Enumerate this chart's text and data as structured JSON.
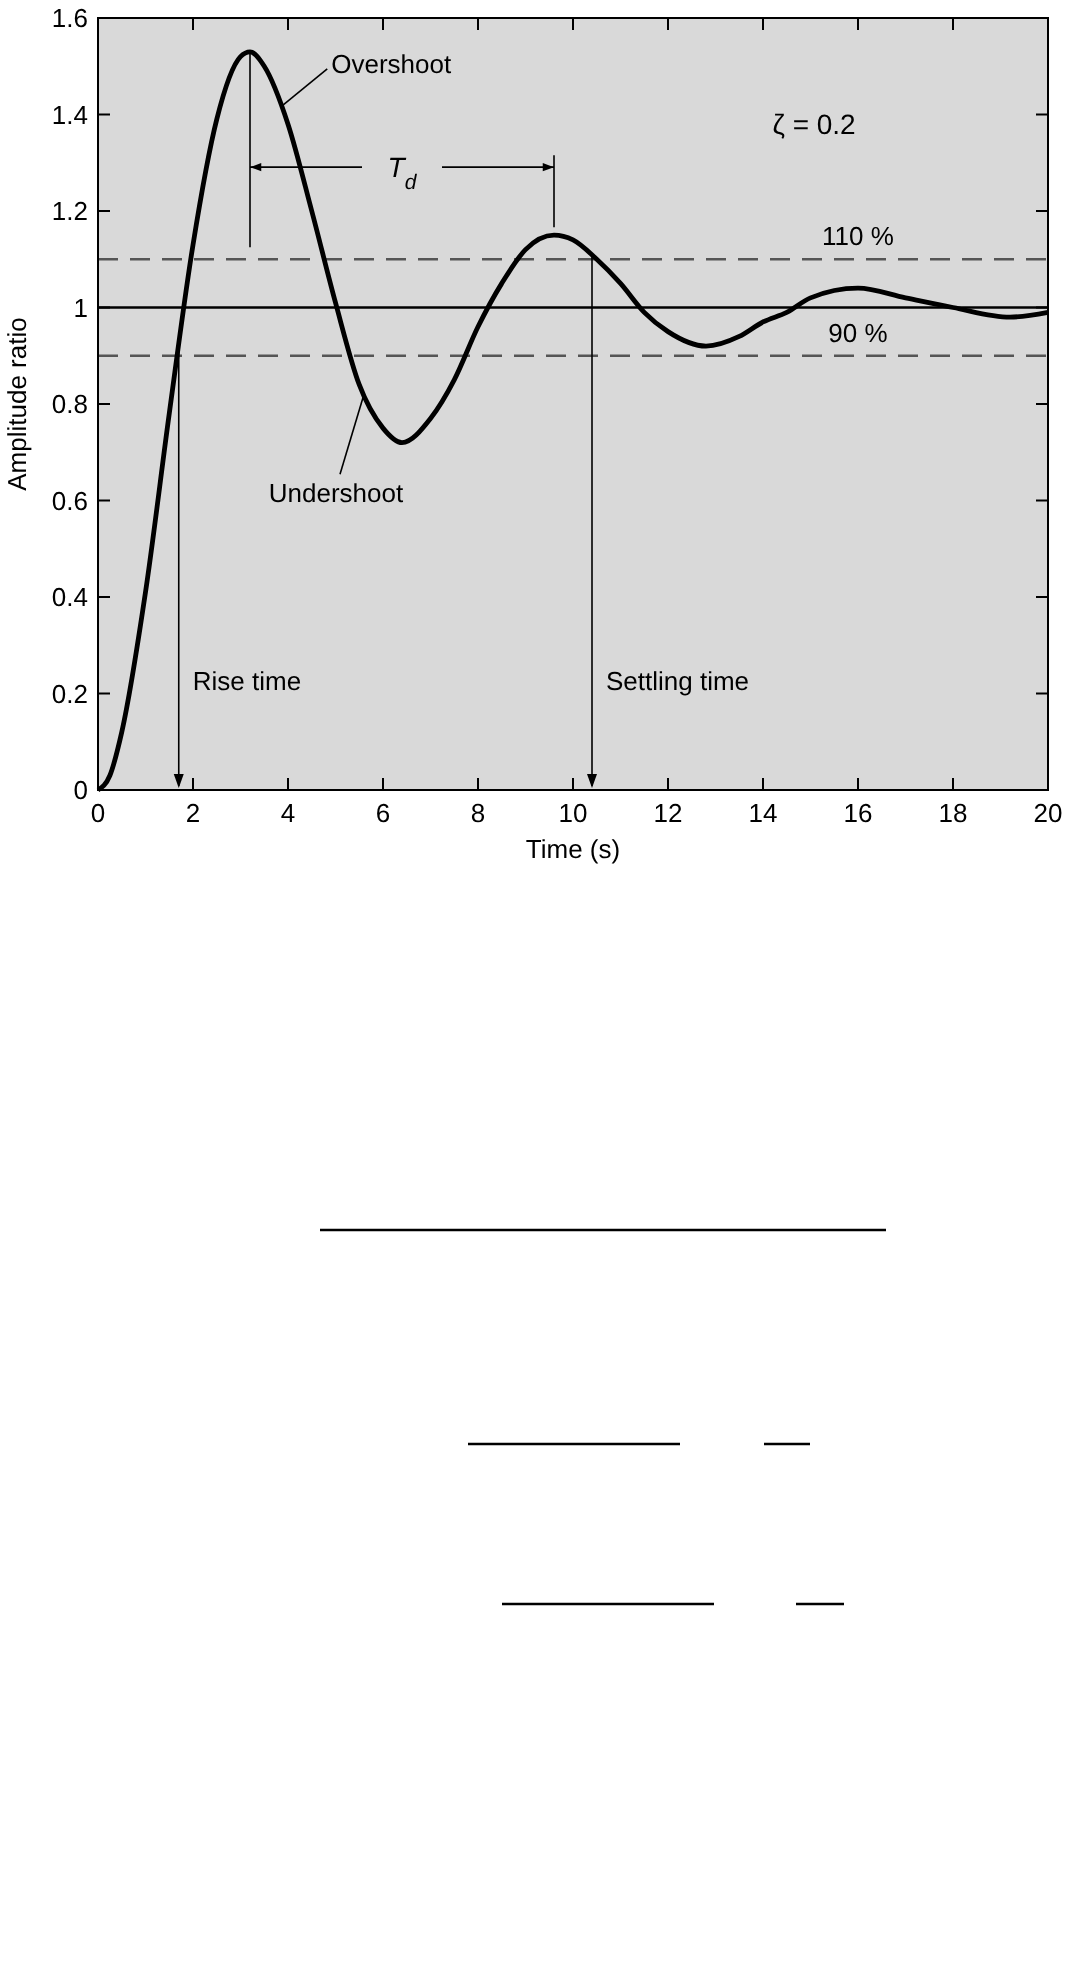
{
  "chart_data": {
    "type": "line",
    "xlabel": "Time (s)",
    "ylabel": "Amplitude ratio",
    "xlim": [
      0,
      20
    ],
    "ylim": [
      0,
      1.6
    ],
    "xticks": [
      0,
      2,
      4,
      6,
      8,
      10,
      12,
      14,
      16,
      18,
      20
    ],
    "yticks": [
      0,
      0.2,
      0.4,
      0.6,
      0.8,
      1,
      1.2,
      1.4,
      1.6
    ],
    "grid": false,
    "series": [
      {
        "color": "#000000",
        "x": [
          0,
          0.25,
          0.5,
          1,
          1.5,
          2,
          2.5,
          3,
          3.2,
          3.5,
          4,
          4.5,
          5,
          5.5,
          6,
          6.4,
          7,
          7.5,
          8,
          8.5,
          9,
          9.6,
          10,
          10.5,
          11,
          11.5,
          12,
          12.8,
          13.5,
          14,
          14.5,
          15,
          16,
          17,
          18,
          19.2,
          20
        ],
        "values": [
          0,
          0.03,
          0.12,
          0.41,
          0.78,
          1.13,
          1.39,
          1.52,
          1.53,
          1.5,
          1.38,
          1.2,
          1.01,
          0.84,
          0.75,
          0.72,
          0.77,
          0.85,
          0.96,
          1.05,
          1.12,
          1.15,
          1.14,
          1.1,
          1.05,
          0.99,
          0.95,
          0.92,
          0.94,
          0.97,
          0.99,
          1.02,
          1.04,
          1.02,
          1,
          0.98,
          0.99
        ]
      }
    ],
    "ref_lines": [
      {
        "axis": "y",
        "value": 1.1,
        "label": "110 %",
        "color": "#555555",
        "line_style": "dashed"
      },
      {
        "axis": "y",
        "value": 1,
        "label": null,
        "color": "#000000",
        "line_style": "solid"
      },
      {
        "axis": "y",
        "value": 0.9,
        "label": "90 %",
        "color": "#555555",
        "line_style": "dashed"
      },
      {
        "axis": "x",
        "value": 1.7,
        "label": "Rise time",
        "color": "#000000",
        "line_style": "solid"
      },
      {
        "axis": "x",
        "value": 10.4,
        "label": "Settling time",
        "color": "#000000",
        "line_style": "solid"
      }
    ],
    "annotations": [
      {
        "text": "Overshoot",
        "x": 3.9,
        "y": 1.42
      },
      {
        "text": "Undershoot",
        "x": 5.6,
        "y": 0.82
      },
      "T$_{d}$",
      "ζ = 0.2"
    ]
  }
}
